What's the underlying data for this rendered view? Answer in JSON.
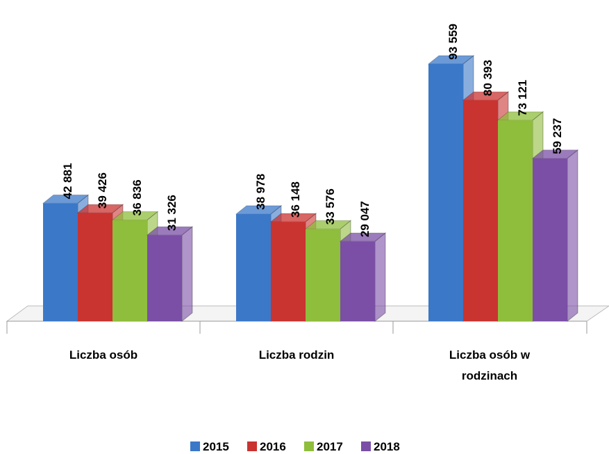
{
  "chart_data": {
    "type": "bar3d",
    "categories": [
      "Liczba osób",
      "Liczba rodzin",
      "Liczba osób w rodzinach"
    ],
    "series": [
      {
        "name": "2015",
        "color": "#3b78c8",
        "values": [
          42881,
          38978,
          93559
        ],
        "value_labels": [
          "42 881",
          "38 978",
          "93 559"
        ]
      },
      {
        "name": "2016",
        "color": "#c93330",
        "values": [
          39426,
          36148,
          80393
        ],
        "value_labels": [
          "39 426",
          "36 148",
          "80 393"
        ]
      },
      {
        "name": "2017",
        "color": "#8fbd3c",
        "values": [
          36836,
          33576,
          73121
        ],
        "value_labels": [
          "36 836",
          "33 576",
          "73 121"
        ]
      },
      {
        "name": "2018",
        "color": "#7a4fa5",
        "values": [
          31326,
          29047,
          59237
        ],
        "value_labels": [
          "31 326",
          "29 047",
          "59 237"
        ]
      }
    ],
    "legend": "bottom"
  }
}
